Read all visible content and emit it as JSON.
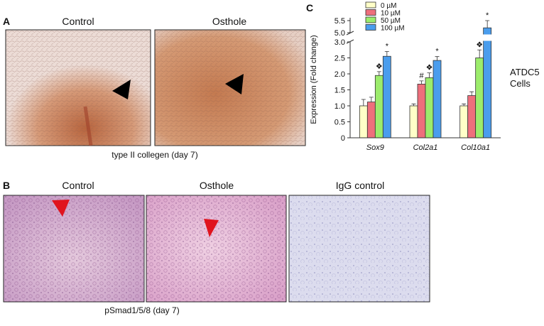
{
  "panels": {
    "A": {
      "label": "A",
      "titles": [
        "Control",
        "Osthole"
      ],
      "caption": "type II collegen (day 7)"
    },
    "B": {
      "label": "B",
      "titles": [
        "Control",
        "Osthole",
        "IgG control"
      ],
      "caption": "pSmad1/5/8 (day 7)"
    },
    "C": {
      "label": "C",
      "side_label": [
        "ATDC5",
        "Cells"
      ]
    }
  },
  "chart_data": {
    "type": "bar",
    "y_label": "Expression (Fold change)",
    "categories": [
      "Sox9",
      "Col2a1",
      "Col10a1"
    ],
    "series": [
      {
        "name": "0 µM",
        "color": "#ffffc8",
        "values": [
          1.0,
          1.0,
          1.0
        ],
        "errors": [
          0.2,
          0.06,
          0.06
        ],
        "significance": [
          null,
          null,
          null
        ]
      },
      {
        "name": "10 µM",
        "color": "#ee6f7c",
        "values": [
          1.12,
          1.68,
          1.32
        ],
        "errors": [
          0.15,
          0.1,
          0.12
        ],
        "significance": [
          null,
          "#",
          null
        ]
      },
      {
        "name": "50 µM",
        "color": "#9cec6c",
        "values": [
          1.95,
          1.88,
          2.5
        ],
        "errors": [
          0.12,
          0.15,
          0.25
        ],
        "significance": [
          "❖",
          "❖",
          "❖"
        ]
      },
      {
        "name": "100 µM",
        "color": "#4a9ded",
        "values": [
          2.55,
          2.42,
          5.2
        ],
        "errors": [
          0.15,
          0.12,
          0.3
        ],
        "significance": [
          "*",
          "*",
          "*"
        ]
      }
    ],
    "ylim": [
      0,
      5.5
    ],
    "axis_break": [
      3,
      5
    ],
    "yticks": [
      0,
      0.5,
      {
        "value": 1,
        "label": "1.0"
      },
      1.5,
      {
        "value": 2,
        "label": "2.0"
      },
      2.5,
      {
        "value": 3,
        "label": "3.0"
      },
      {
        "value": 5,
        "label": "5.0"
      },
      5.5
    ],
    "grid": false
  }
}
